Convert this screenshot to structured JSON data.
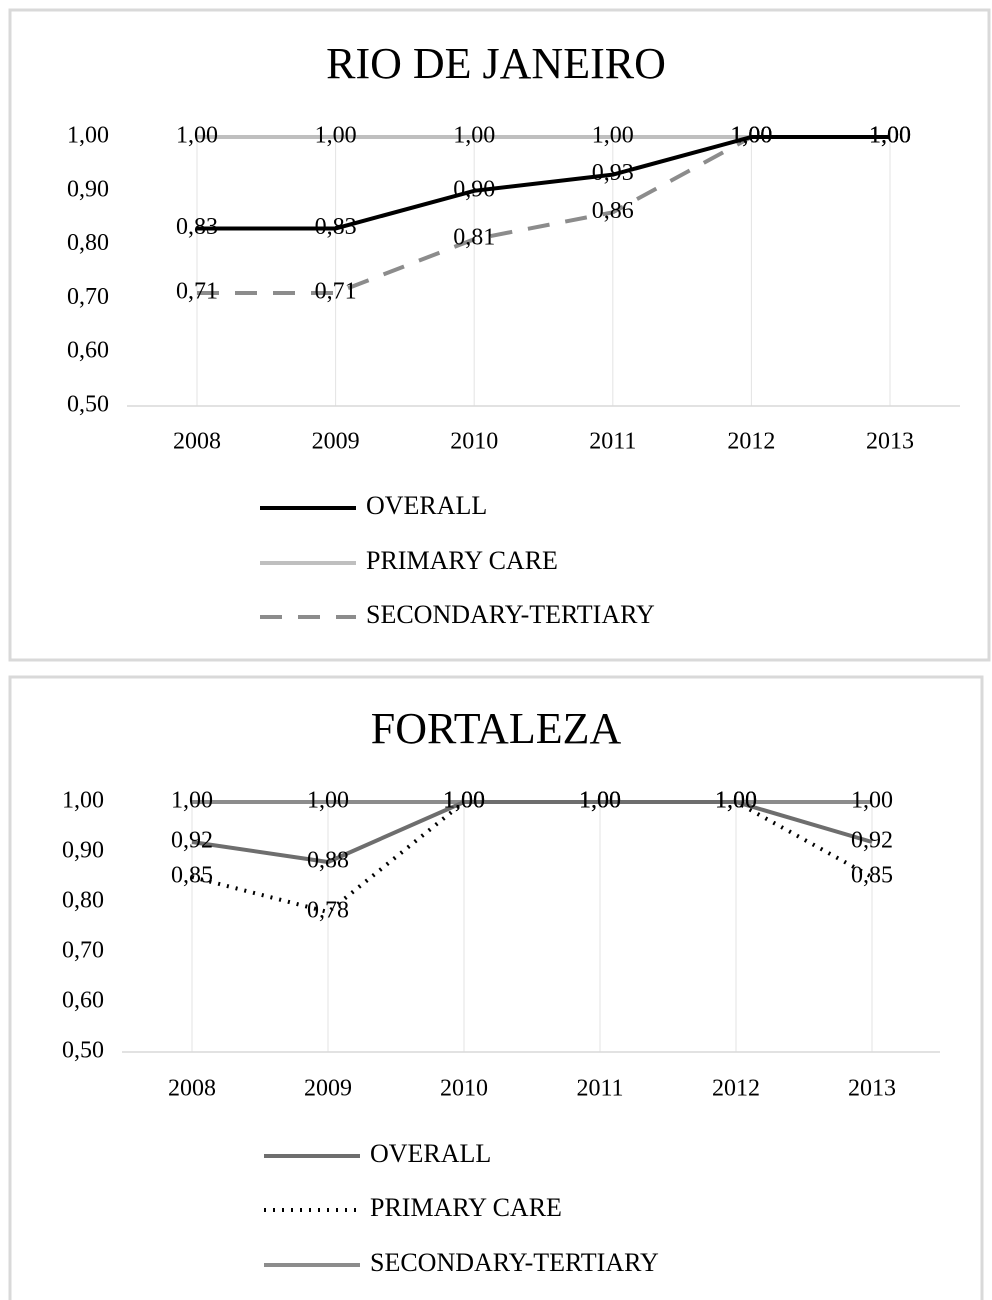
{
  "chart_data": [
    {
      "type": "line",
      "title": "RIO DE JANEIRO",
      "categories": [
        "2008",
        "2009",
        "2010",
        "2011",
        "2012",
        "2013"
      ],
      "ylim": [
        0.5,
        1.0
      ],
      "yticks": [
        {
          "value": 0.5,
          "label": "0,50"
        },
        {
          "value": 0.6,
          "label": "0,60"
        },
        {
          "value": 0.7,
          "label": "0,70"
        },
        {
          "value": 0.8,
          "label": "0,80"
        },
        {
          "value": 0.9,
          "label": "0,90"
        },
        {
          "value": 1.0,
          "label": "1,00"
        }
      ],
      "grid": true,
      "series": [
        {
          "name": "OVERALL",
          "color": "#000000",
          "dash": "solid",
          "values": [
            0.83,
            0.83,
            0.9,
            0.93,
            1.0,
            1.0
          ],
          "value_labels": [
            "0,83",
            "0,83",
            "0,90",
            "0,93",
            "1,00",
            "1,00"
          ]
        },
        {
          "name": "PRIMARY CARE",
          "color": "#bfbfbf",
          "dash": "solid",
          "values": [
            1.0,
            1.0,
            1.0,
            1.0,
            1.0,
            1.0
          ],
          "value_labels": [
            "1,00",
            "1,00",
            "1,00",
            "1,00",
            "1,00",
            "1,00"
          ]
        },
        {
          "name": "SECONDARY-TERTIARY",
          "color": "#8c8c8c",
          "dash": "dashed",
          "values": [
            0.71,
            0.71,
            0.81,
            0.86,
            1.0,
            1.0
          ],
          "value_labels": [
            "0,71",
            "0,71",
            "0,81",
            "0,86",
            "1,00",
            "1,00"
          ]
        }
      ]
    },
    {
      "type": "line",
      "title": "FORTALEZA",
      "categories": [
        "2008",
        "2009",
        "2010",
        "2011",
        "2012",
        "2013"
      ],
      "ylim": [
        0.5,
        1.0
      ],
      "yticks": [
        {
          "value": 0.5,
          "label": "0,50"
        },
        {
          "value": 0.6,
          "label": "0,60"
        },
        {
          "value": 0.7,
          "label": "0,70"
        },
        {
          "value": 0.8,
          "label": "0,80"
        },
        {
          "value": 0.9,
          "label": "0,90"
        },
        {
          "value": 1.0,
          "label": "1,00"
        }
      ],
      "grid": true,
      "series": [
        {
          "name": "OVERALL",
          "color": "#6e6e6e",
          "dash": "solid",
          "values": [
            0.92,
            0.88,
            1.0,
            1.0,
            1.0,
            0.92
          ],
          "value_labels": [
            "0,92",
            "0,88",
            "1,00",
            "1,00",
            "1,00",
            "0,92"
          ]
        },
        {
          "name": "PRIMARY CARE",
          "color": "#000000",
          "dash": "dotted",
          "values": [
            0.85,
            0.78,
            1.0,
            1.0,
            1.0,
            0.85
          ],
          "value_labels": [
            "0,85",
            "0,78",
            "1,00",
            "1,00",
            "1,00",
            "0,85"
          ]
        },
        {
          "name": "SECONDARY-TERTIARY",
          "color": "#8c8c8c",
          "dash": "solid",
          "values": [
            1.0,
            1.0,
            1.0,
            1.0,
            1.0,
            1.0
          ],
          "value_labels": [
            "1,00",
            "1,00",
            "1,00",
            "1,00",
            "1,00",
            "1,00"
          ]
        }
      ]
    }
  ]
}
